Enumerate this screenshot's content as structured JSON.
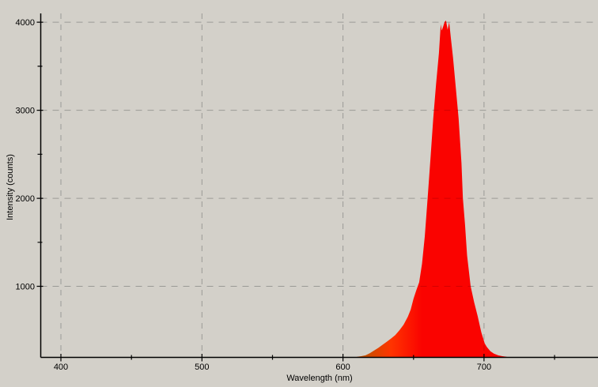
{
  "colors": {
    "background": "#d3d0c9",
    "grid": "#9a9a96",
    "grid_over_fill": "#d40000",
    "axis": "#000000",
    "spectrum_core": "#fa0300",
    "spectrum_foot": "#c65000",
    "spectrum_mid": "#ff3400",
    "text": "#000000"
  },
  "chart_data": {
    "type": "area",
    "title": "",
    "xlabel": "Wavelength (nm)",
    "ylabel": "Intensity (counts)",
    "xlim": [
      385.7,
      780.8
    ],
    "ylim": [
      197,
      4100
    ],
    "grid": "dashed gray on major ticks, open top/right (no border)",
    "legend": "none",
    "x_major_ticks": [
      400,
      500,
      600,
      700
    ],
    "x_minor_ticks": [
      450,
      550,
      650,
      750
    ],
    "y_major_ticks": [
      1000,
      2000,
      3000,
      4000
    ],
    "y_minor_ticks": [
      1500,
      2500,
      3500
    ],
    "series": [
      {
        "name": "spectrum",
        "description": "red emission peak, baseline ~200 counts, peak ~4020 counts near 673 nm, FWHM ~25 nm",
        "peak_wavelength_nm": 673,
        "peak_counts": 4020,
        "baseline_counts": 200,
        "points": [
          [
            610,
            200
          ],
          [
            613,
            206
          ],
          [
            616,
            216
          ],
          [
            619,
            240
          ],
          [
            622,
            270
          ],
          [
            625,
            300
          ],
          [
            628,
            335
          ],
          [
            631,
            370
          ],
          [
            634,
            405
          ],
          [
            637,
            445
          ],
          [
            640,
            500
          ],
          [
            643,
            565
          ],
          [
            646,
            655
          ],
          [
            648,
            735
          ],
          [
            650,
            860
          ],
          [
            652,
            955
          ],
          [
            654,
            1045
          ],
          [
            656,
            1255
          ],
          [
            658,
            1565
          ],
          [
            660,
            2000
          ],
          [
            662,
            2450
          ],
          [
            664,
            2905
          ],
          [
            666,
            3300
          ],
          [
            668,
            3650
          ],
          [
            669.3,
            3975
          ],
          [
            670,
            3905
          ],
          [
            671,
            3950
          ],
          [
            672,
            4000
          ],
          [
            673,
            4020
          ],
          [
            674.2,
            3915
          ],
          [
            675.3,
            4000
          ],
          [
            676.5,
            3820
          ],
          [
            678,
            3600
          ],
          [
            680,
            3250
          ],
          [
            682,
            2905
          ],
          [
            684,
            2400
          ],
          [
            685,
            2000
          ],
          [
            686.5,
            1700
          ],
          [
            688,
            1350
          ],
          [
            690.5,
            1000
          ],
          [
            693,
            820
          ],
          [
            695.5,
            660
          ],
          [
            698,
            480
          ],
          [
            700.5,
            350
          ],
          [
            702,
            310
          ],
          [
            704.5,
            262
          ],
          [
            707,
            236
          ],
          [
            710,
            216
          ],
          [
            713,
            206
          ],
          [
            716,
            200
          ]
        ]
      }
    ]
  }
}
